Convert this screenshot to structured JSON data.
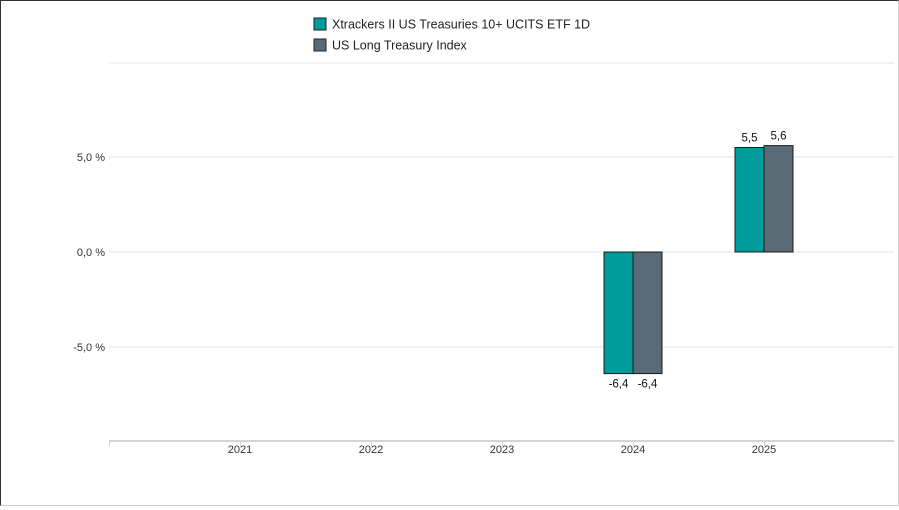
{
  "chart_data": {
    "type": "bar",
    "categories": [
      "2021",
      "2022",
      "2023",
      "2024",
      "2025"
    ],
    "series": [
      {
        "name": "Xtrackers II US Treasuries 10+ UCITS ETF 1D",
        "values": [
          null,
          null,
          null,
          -6.4,
          5.5
        ],
        "labels": [
          "",
          "",
          "",
          "-6,4",
          "5,5"
        ],
        "color": "#009c9c"
      },
      {
        "name": "US Long Treasury Index",
        "values": [
          null,
          null,
          null,
          -6.4,
          5.6
        ],
        "labels": [
          "",
          "",
          "",
          "-6,4",
          "5,6"
        ],
        "color": "#5a6b77"
      }
    ],
    "yticks": [
      {
        "value": 5.0,
        "label": "5,0 %"
      },
      {
        "value": 0.0,
        "label": "0,0 %"
      },
      {
        "value": -5.0,
        "label": "-5,0 %"
      }
    ],
    "ylim": [
      -10,
      10
    ],
    "grid": true,
    "legend": "top-center"
  }
}
